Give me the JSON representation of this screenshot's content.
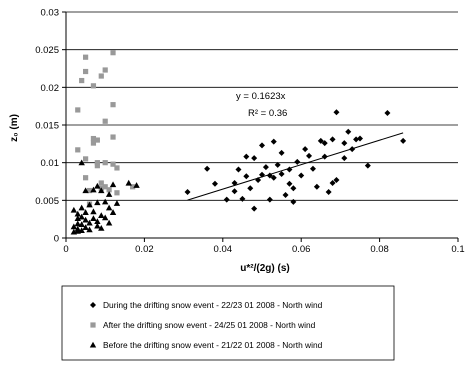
{
  "chart_data": {
    "type": "scatter",
    "title": "",
    "xlabel": "u*²/(2g)  (s)",
    "ylabel": "z₀ (m)",
    "xlim": [
      0,
      0.1
    ],
    "ylim": [
      0,
      0.03
    ],
    "x_ticks": [
      0,
      0.02,
      0.04,
      0.06,
      0.08,
      0.1
    ],
    "x_tick_labels": [
      "0",
      "0.02",
      "0.04",
      "0.06",
      "0.08",
      "0.1"
    ],
    "y_ticks": [
      0,
      0.005,
      0.01,
      0.015,
      0.02,
      0.025,
      0.03
    ],
    "y_tick_labels": [
      "0",
      "0.005",
      "0.01",
      "0.015",
      "0.02",
      "0.025",
      "0.03"
    ],
    "grid": "horizontal major gridlines",
    "legend_position": "bottom",
    "series": [
      {
        "name": "During the drifting snow event - 22/23 01 2008 - North wind",
        "marker": "diamond",
        "color": "#000000",
        "points": [
          [
            0.031,
            0.0061
          ],
          [
            0.036,
            0.0092
          ],
          [
            0.038,
            0.0072
          ],
          [
            0.041,
            0.0051
          ],
          [
            0.043,
            0.0062
          ],
          [
            0.043,
            0.0073
          ],
          [
            0.044,
            0.0091
          ],
          [
            0.045,
            0.0052
          ],
          [
            0.046,
            0.0082
          ],
          [
            0.046,
            0.0108
          ],
          [
            0.047,
            0.0066
          ],
          [
            0.048,
            0.0039
          ],
          [
            0.048,
            0.0106
          ],
          [
            0.049,
            0.0077
          ],
          [
            0.05,
            0.0084
          ],
          [
            0.05,
            0.0123
          ],
          [
            0.051,
            0.0094
          ],
          [
            0.052,
            0.0083
          ],
          [
            0.052,
            0.0051
          ],
          [
            0.053,
            0.008
          ],
          [
            0.053,
            0.0128
          ],
          [
            0.054,
            0.0097
          ],
          [
            0.055,
            0.0085
          ],
          [
            0.055,
            0.0113
          ],
          [
            0.056,
            0.0057
          ],
          [
            0.057,
            0.0091
          ],
          [
            0.057,
            0.0072
          ],
          [
            0.058,
            0.0048
          ],
          [
            0.058,
            0.0066
          ],
          [
            0.059,
            0.0101
          ],
          [
            0.06,
            0.0083
          ],
          [
            0.061,
            0.0118
          ],
          [
            0.062,
            0.0109
          ],
          [
            0.063,
            0.0092
          ],
          [
            0.064,
            0.0068
          ],
          [
            0.065,
            0.0129
          ],
          [
            0.066,
            0.0126
          ],
          [
            0.066,
            0.0108
          ],
          [
            0.067,
            0.0061
          ],
          [
            0.068,
            0.0073
          ],
          [
            0.068,
            0.0131
          ],
          [
            0.069,
            0.0167
          ],
          [
            0.069,
            0.0077
          ],
          [
            0.071,
            0.0106
          ],
          [
            0.071,
            0.0126
          ],
          [
            0.072,
            0.0141
          ],
          [
            0.073,
            0.0118
          ],
          [
            0.074,
            0.0131
          ],
          [
            0.075,
            0.0132
          ],
          [
            0.077,
            0.0096
          ],
          [
            0.082,
            0.0166
          ],
          [
            0.086,
            0.0129
          ]
        ]
      },
      {
        "name": "After the drifting snow event - 24/25 01 2008 - North wind",
        "marker": "square",
        "color": "#999999",
        "points": [
          [
            0.003,
            0.017
          ],
          [
            0.003,
            0.0117
          ],
          [
            0.004,
            0.0209
          ],
          [
            0.005,
            0.024
          ],
          [
            0.005,
            0.0221
          ],
          [
            0.005,
            0.0105
          ],
          [
            0.005,
            0.008
          ],
          [
            0.006,
            0.0063
          ],
          [
            0.006,
            0.0045
          ],
          [
            0.007,
            0.0132
          ],
          [
            0.007,
            0.0126
          ],
          [
            0.007,
            0.0202
          ],
          [
            0.008,
            0.013
          ],
          [
            0.008,
            0.01
          ],
          [
            0.008,
            0.0096
          ],
          [
            0.009,
            0.0215
          ],
          [
            0.009,
            0.0066
          ],
          [
            0.009,
            0.0073
          ],
          [
            0.01,
            0.0155
          ],
          [
            0.01,
            0.01
          ],
          [
            0.01,
            0.0068
          ],
          [
            0.01,
            0.0223
          ],
          [
            0.011,
            0.0064
          ],
          [
            0.012,
            0.0246
          ],
          [
            0.012,
            0.0177
          ],
          [
            0.012,
            0.0134
          ],
          [
            0.012,
            0.0098
          ],
          [
            0.013,
            0.0093
          ],
          [
            0.013,
            0.006
          ],
          [
            0.017,
            0.0068
          ]
        ]
      },
      {
        "name": "Before the drifting snow event - 21/22 01 2008 - North wind",
        "marker": "triangle",
        "color": "#000000",
        "points": [
          [
            0.002,
            0.0037
          ],
          [
            0.002,
            0.0015
          ],
          [
            0.002,
            0.0008
          ],
          [
            0.003,
            0.0032
          ],
          [
            0.003,
            0.0026
          ],
          [
            0.003,
            0.0019
          ],
          [
            0.003,
            0.0012
          ],
          [
            0.003,
            0.0009
          ],
          [
            0.004,
            0.01
          ],
          [
            0.004,
            0.004
          ],
          [
            0.004,
            0.0028
          ],
          [
            0.004,
            0.0018
          ],
          [
            0.004,
            0.001
          ],
          [
            0.005,
            0.0063
          ],
          [
            0.005,
            0.0034
          ],
          [
            0.005,
            0.0024
          ],
          [
            0.005,
            0.0014
          ],
          [
            0.006,
            0.0044
          ],
          [
            0.006,
            0.002
          ],
          [
            0.006,
            0.0011
          ],
          [
            0.007,
            0.0064
          ],
          [
            0.007,
            0.0035
          ],
          [
            0.007,
            0.0026
          ],
          [
            0.008,
            0.0069
          ],
          [
            0.008,
            0.0047
          ],
          [
            0.008,
            0.0022
          ],
          [
            0.008,
            0.0016
          ],
          [
            0.009,
            0.0063
          ],
          [
            0.009,
            0.003
          ],
          [
            0.009,
            0.0013
          ],
          [
            0.01,
            0.0048
          ],
          [
            0.01,
            0.0027
          ],
          [
            0.011,
            0.0058
          ],
          [
            0.011,
            0.004
          ],
          [
            0.011,
            0.002
          ],
          [
            0.012,
            0.0071
          ],
          [
            0.012,
            0.0034
          ],
          [
            0.013,
            0.0046
          ],
          [
            0.016,
            0.0073
          ],
          [
            0.018,
            0.007
          ]
        ]
      }
    ],
    "trendline": {
      "series": "During the drifting snow event - 22/23 01 2008 - North wind",
      "slope": 0.1623,
      "x_range": [
        0.031,
        0.086
      ],
      "equation_label": "y = 0.1623x",
      "r2_label": "R² = 0.36"
    }
  }
}
